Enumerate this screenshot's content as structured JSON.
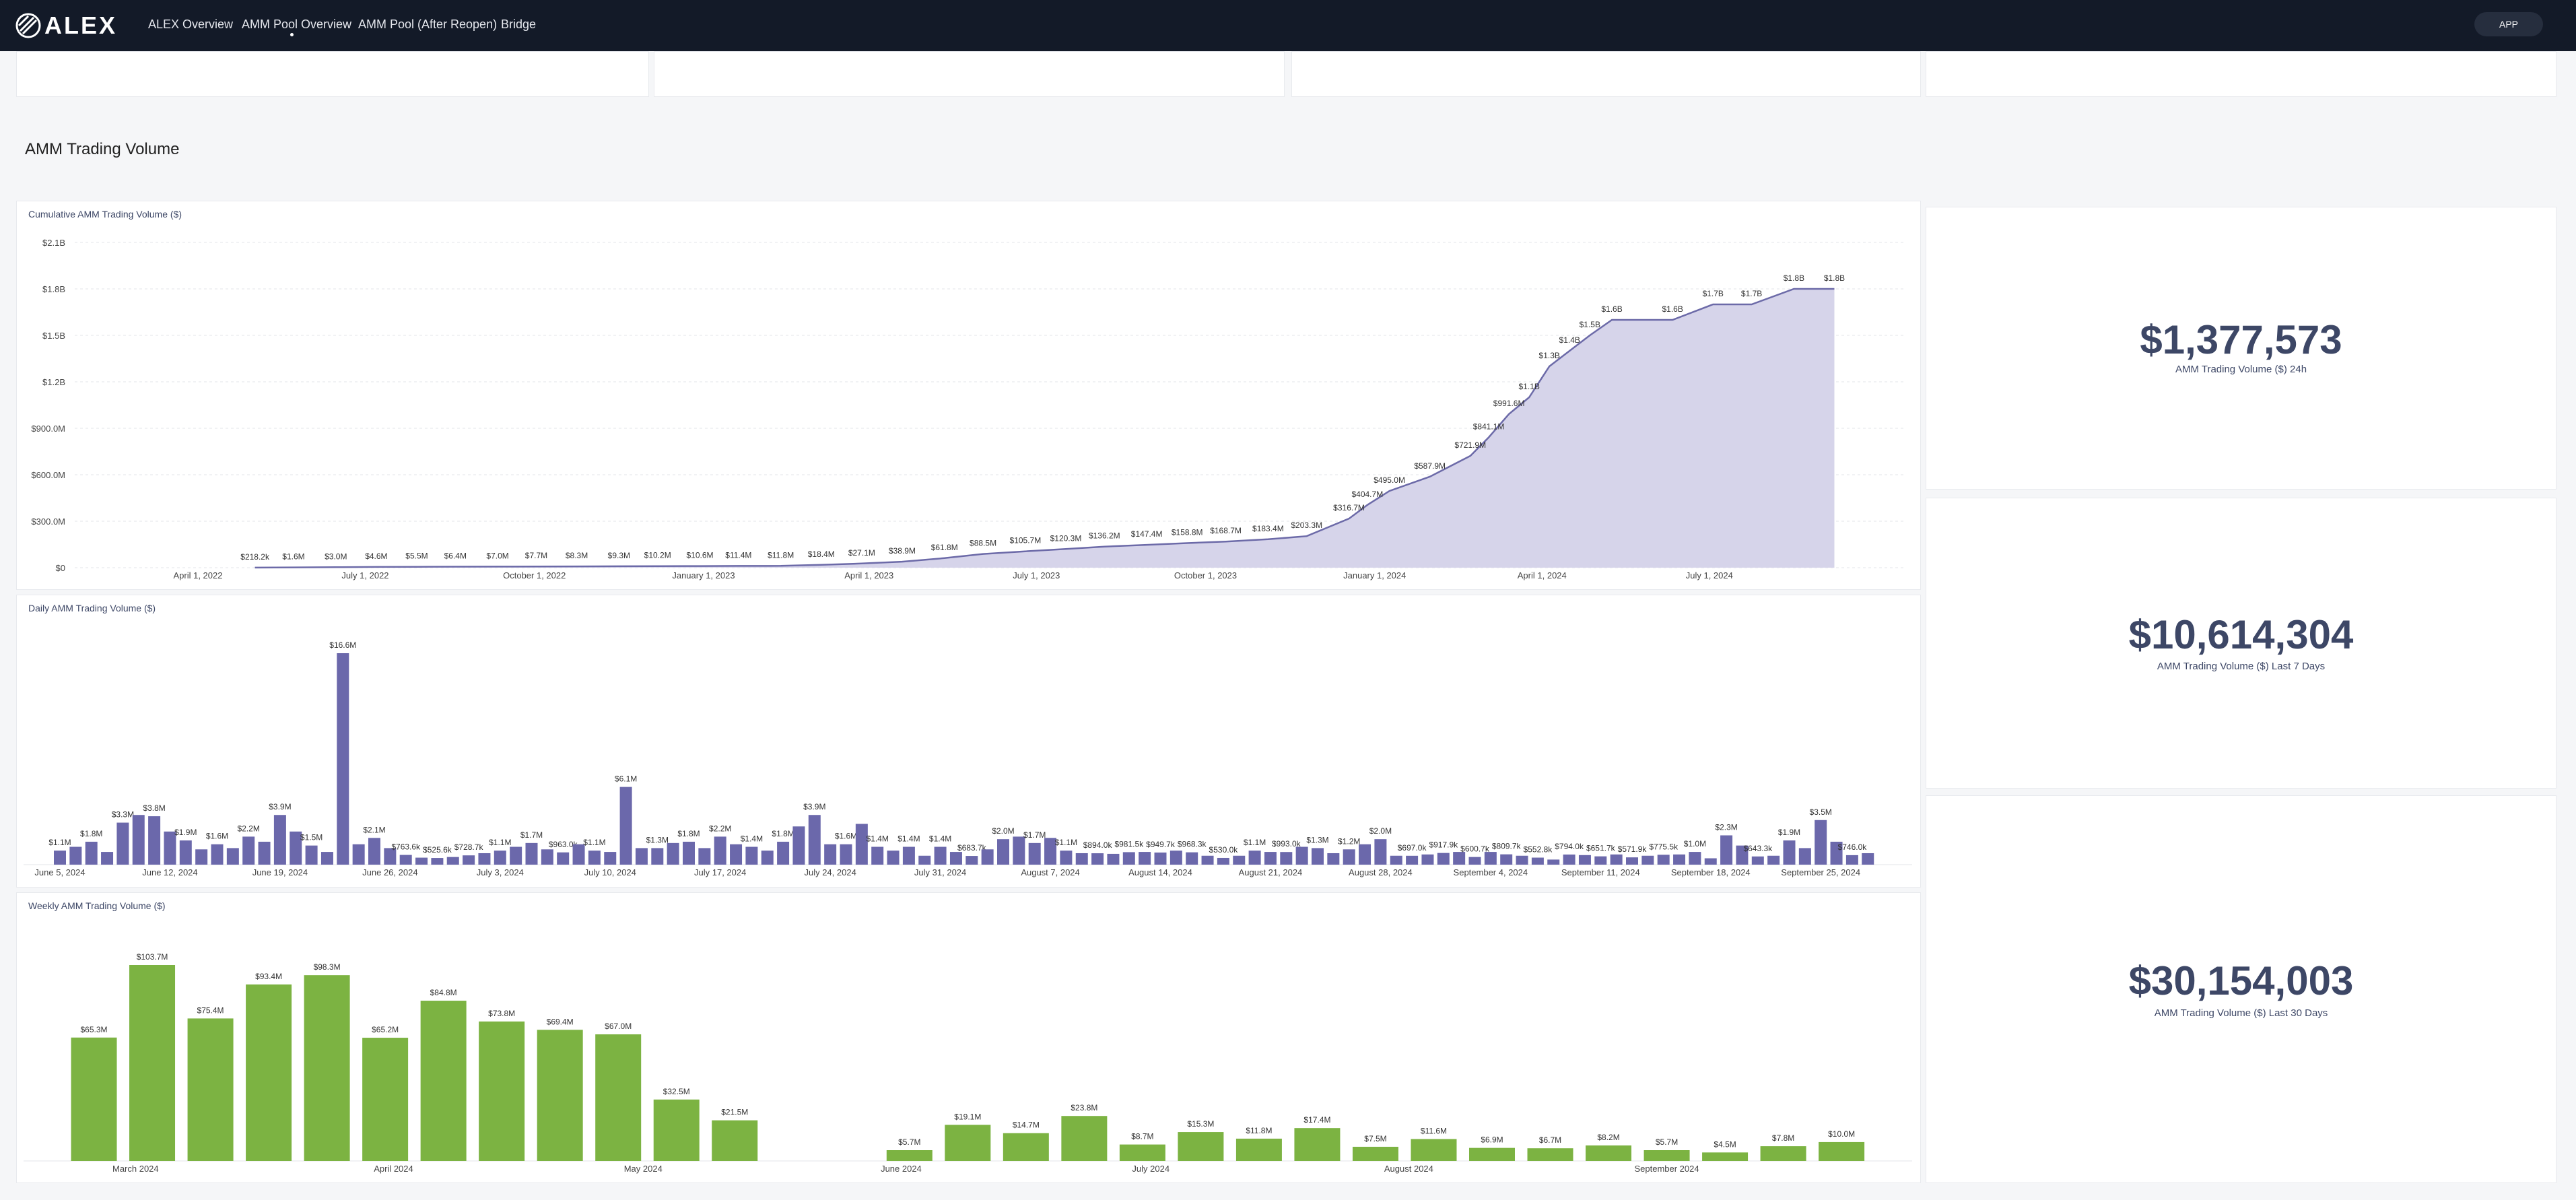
{
  "nav": {
    "logo": "ALEX",
    "links": [
      "ALEX Overview",
      "AMM Pool Overview",
      "AMM Pool (After Reopen)",
      "Bridge"
    ],
    "button": "APP"
  },
  "section_title": "AMM Trading Volume",
  "chart_data": [
    {
      "type": "area",
      "title": "Cumulative AMM Trading Volume ($)",
      "color": "#6c6aa8",
      "fill": "#d6d4ea",
      "grid": true,
      "x": [
        "2022-05-02",
        "2022-05-23",
        "2022-06-15",
        "2022-07-07",
        "2022-07-29",
        "2022-08-19",
        "2022-09-11",
        "2022-10-02",
        "2022-10-24",
        "2022-11-16",
        "2022-12-07",
        "2022-12-30",
        "2023-01-20",
        "2023-02-12",
        "2023-03-06",
        "2023-03-28",
        "2023-04-19",
        "2023-05-12",
        "2023-06-02",
        "2023-06-25",
        "2023-07-17",
        "2023-08-07",
        "2023-08-30",
        "2023-09-21",
        "2023-10-12",
        "2023-11-04",
        "2023-11-25",
        "2023-12-18",
        "2023-12-28",
        "2024-01-09",
        "2024-01-31",
        "2024-02-22",
        "2024-03-03",
        "2024-03-14",
        "2024-03-25",
        "2024-04-05",
        "2024-04-16",
        "2024-04-27",
        "2024-05-09",
        "2024-06-11",
        "2024-07-03",
        "2024-07-24",
        "2024-08-16",
        "2024-09-07"
      ],
      "values": [
        218200,
        1600000,
        3000000,
        4600000,
        5500000,
        6400000,
        7000000,
        7700000,
        8300000,
        9300000,
        10200000,
        10600000,
        11400000,
        11800000,
        18400000,
        27100000,
        38900000,
        61800000,
        88500000,
        105700000,
        120300000,
        136200000,
        147400000,
        158800000,
        168700000,
        183400000,
        203300000,
        316700000,
        404700000,
        495000000,
        587900000,
        721900000,
        841100000,
        991600000,
        1100000000,
        1300000000,
        1400000000,
        1500000000,
        1600000000,
        1600000000,
        1700000000,
        1700000000,
        1800000000,
        1800000000
      ],
      "value_labels": [
        "$218.2k",
        "$1.6M",
        "$3.0M",
        "$4.6M",
        "$5.5M",
        "$6.4M",
        "$7.0M",
        "$7.7M",
        "$8.3M",
        "$9.3M",
        "$10.2M",
        "$10.6M",
        "$11.4M",
        "$11.8M",
        "$18.4M",
        "$27.1M",
        "$38.9M",
        "$61.8M",
        "$88.5M",
        "$105.7M",
        "$120.3M",
        "$136.2M",
        "$147.4M",
        "$158.8M",
        "$168.7M",
        "$183.4M",
        "$203.3M",
        "$316.7M",
        "$404.7M",
        "$495.0M",
        "$587.9M",
        "$721.9M",
        "$841.1M",
        "$991.6M",
        "$1.1B",
        "$1.3B",
        "$1.4B",
        "$1.5B",
        "$1.6B",
        "$1.6B",
        "$1.7B",
        "$1.7B",
        "$1.8B",
        "$1.8B"
      ],
      "xlim": [
        "2022-01-24",
        "2024-10-16"
      ],
      "xticks": [
        {
          "value": "2022-04-01",
          "label": "April 1, 2022"
        },
        {
          "value": "2022-07-01",
          "label": "July 1, 2022"
        },
        {
          "value": "2022-10-01",
          "label": "October 1, 2022"
        },
        {
          "value": "2023-01-01",
          "label": "January 1, 2023"
        },
        {
          "value": "2023-04-01",
          "label": "April 1, 2023"
        },
        {
          "value": "2023-07-01",
          "label": "July 1, 2023"
        },
        {
          "value": "2023-10-01",
          "label": "October 1, 2023"
        },
        {
          "value": "2024-01-01",
          "label": "January 1, 2024"
        },
        {
          "value": "2024-04-01",
          "label": "April 1, 2024"
        },
        {
          "value": "2024-07-01",
          "label": "July 1, 2024"
        }
      ],
      "ylim": [
        0,
        2100000000
      ],
      "yticks": [
        {
          "value": 0,
          "label": "$0"
        },
        {
          "value": 300000000,
          "label": "$300.0M"
        },
        {
          "value": 600000000,
          "label": "$600.0M"
        },
        {
          "value": 900000000,
          "label": "$900.0M"
        },
        {
          "value": 1200000000,
          "label": "$1.2B"
        },
        {
          "value": 1500000000,
          "label": "$1.5B"
        },
        {
          "value": 1800000000,
          "label": "$1.8B"
        },
        {
          "value": 2100000000,
          "label": "$2.1B"
        }
      ]
    },
    {
      "type": "bar",
      "title": "Daily AMM Trading Volume ($)",
      "color": "#6b68ab",
      "categories": [
        "June 5, 2024",
        null,
        null,
        null,
        null,
        null,
        null,
        "June 12, 2024",
        null,
        null,
        null,
        null,
        null,
        null,
        "June 19, 2024",
        null,
        null,
        null,
        null,
        null,
        null,
        "June 26, 2024",
        null,
        null,
        null,
        null,
        null,
        null,
        "July 3, 2024",
        null,
        null,
        null,
        null,
        null,
        null,
        "July 10, 2024",
        null,
        null,
        null,
        null,
        null,
        null,
        "July 17, 2024",
        null,
        null,
        null,
        null,
        null,
        null,
        "July 24, 2024",
        null,
        null,
        null,
        null,
        null,
        null,
        "July 31, 2024",
        null,
        null,
        null,
        null,
        null,
        null,
        "August 7, 2024",
        null,
        null,
        null,
        null,
        null,
        null,
        "August 14, 2024",
        null,
        null,
        null,
        null,
        null,
        null,
        "August 21, 2024",
        null,
        null,
        null,
        null,
        null,
        null,
        "August 28, 2024",
        null,
        null,
        null,
        null,
        null,
        null,
        "September 4, 2024",
        null,
        null,
        null,
        null,
        null,
        null,
        "September 11, 2024",
        null,
        null,
        null,
        null,
        null,
        null,
        "September 18, 2024",
        null,
        null,
        null,
        null,
        null,
        null,
        "September 25, 2024",
        null,
        null,
        null
      ],
      "values": [
        1100000,
        1400000,
        1800000,
        1000000,
        3300000,
        3900000,
        3800000,
        2600000,
        1900000,
        1200000,
        1600000,
        1300000,
        2200000,
        1800000,
        3900000,
        2600000,
        1500000,
        1000000,
        16600000,
        1600000,
        2100000,
        1300000,
        763600,
        550000,
        525600,
        600000,
        728700,
        900000,
        1100000,
        1400000,
        1700000,
        1200000,
        963000,
        1600000,
        1100000,
        1000000,
        6100000,
        1300000,
        1300000,
        1700000,
        1800000,
        1300000,
        2200000,
        1600000,
        1400000,
        1100000,
        1800000,
        3000000,
        3900000,
        1600000,
        1600000,
        3200000,
        1400000,
        1100000,
        1400000,
        700000,
        1400000,
        1000000,
        683700,
        1200000,
        2000000,
        2200000,
        1700000,
        2100000,
        1100000,
        900000,
        894000,
        850000,
        981500,
        1000000,
        949700,
        1100000,
        968300,
        700000,
        530000,
        700000,
        1100000,
        1000000,
        993000,
        1400000,
        1300000,
        900000,
        1200000,
        1600000,
        2000000,
        700000,
        697000,
        800000,
        917900,
        1000000,
        600700,
        1000000,
        809700,
        700000,
        552800,
        400000,
        794000,
        750000,
        651700,
        800000,
        571900,
        700000,
        775500,
        800000,
        1000000,
        500000,
        2300000,
        1500000,
        643300,
        700000,
        1900000,
        1300000,
        3500000,
        1800000,
        746000,
        900000
      ],
      "value_labels": [
        "$1.1M",
        null,
        "$1.8M",
        null,
        "$3.3M",
        null,
        "$3.8M",
        null,
        "$1.9M",
        null,
        "$1.6M",
        null,
        "$2.2M",
        null,
        "$3.9M",
        null,
        "$1.5M",
        null,
        "$16.6M",
        null,
        "$2.1M",
        null,
        "$763.6k",
        null,
        "$525.6k",
        null,
        "$728.7k",
        null,
        "$1.1M",
        null,
        "$1.7M",
        null,
        "$963.0k",
        null,
        "$1.1M",
        null,
        "$6.1M",
        null,
        "$1.3M",
        null,
        "$1.8M",
        null,
        "$2.2M",
        null,
        "$1.4M",
        null,
        "$1.8M",
        null,
        "$3.9M",
        null,
        "$1.6M",
        null,
        "$1.4M",
        null,
        "$1.4M",
        null,
        "$1.4M",
        null,
        "$683.7k",
        null,
        "$2.0M",
        null,
        "$1.7M",
        null,
        "$1.1M",
        null,
        "$894.0k",
        null,
        "$981.5k",
        null,
        "$949.7k",
        null,
        "$968.3k",
        null,
        "$530.0k",
        null,
        "$1.1M",
        null,
        "$993.0k",
        null,
        "$1.3M",
        null,
        "$1.2M",
        null,
        "$2.0M",
        null,
        "$697.0k",
        null,
        "$917.9k",
        null,
        "$600.7k",
        null,
        "$809.7k",
        null,
        "$552.8k",
        null,
        "$794.0k",
        null,
        "$651.7k",
        null,
        "$571.9k",
        null,
        "$775.5k",
        null,
        "$1.0M",
        null,
        "$2.3M",
        null,
        "$643.3k",
        null,
        "$1.9M",
        null,
        "$3.5M",
        null,
        "$746.0k",
        null
      ]
    },
    {
      "type": "bar",
      "title": "Weekly AMM Trading Volume ($)",
      "color": "#7cb342",
      "x": [
        "2024-02-25",
        "2024-03-03",
        "2024-03-10",
        "2024-03-17",
        "2024-03-24",
        "2024-03-31",
        "2024-04-07",
        "2024-04-14",
        "2024-04-21",
        "2024-04-28",
        "2024-05-05",
        "2024-05-12",
        "2024-06-02",
        "2024-06-09",
        "2024-06-16",
        "2024-06-23",
        "2024-06-30",
        "2024-07-07",
        "2024-07-14",
        "2024-07-21",
        "2024-07-28",
        "2024-08-04",
        "2024-08-11",
        "2024-08-18",
        "2024-08-25",
        "2024-09-01",
        "2024-09-08",
        "2024-09-15",
        "2024-09-22"
      ],
      "values": [
        65300000,
        103700000,
        75400000,
        93400000,
        98300000,
        65200000,
        84800000,
        73800000,
        69400000,
        67000000,
        32500000,
        21500000,
        5700000,
        19100000,
        14700000,
        23800000,
        8700000,
        15300000,
        11800000,
        17400000,
        7500000,
        11600000,
        6900000,
        6700000,
        8200000,
        5700000,
        4500000,
        7800000,
        10000000
      ],
      "value_labels": [
        "$65.3M",
        "$103.7M",
        "$75.4M",
        "$93.4M",
        "$98.3M",
        "$65.2M",
        "$84.8M",
        "$73.8M",
        "$69.4M",
        "$67.0M",
        "$32.5M",
        "$21.5M",
        "$5.7M",
        "$19.1M",
        "$14.7M",
        "$23.8M",
        "$8.7M",
        "$15.3M",
        "$11.8M",
        "$17.4M",
        "$7.5M",
        "$11.6M",
        "$6.9M",
        "$6.7M",
        "$8.2M",
        "$5.7M",
        "$4.5M",
        "$7.8M",
        "$10.0M"
      ],
      "xlim": [
        "2024-02-18",
        "2024-09-30"
      ],
      "xticks": [
        {
          "value": "2024-03-01",
          "label": "March 2024"
        },
        {
          "value": "2024-04-01",
          "label": "April 2024"
        },
        {
          "value": "2024-05-01",
          "label": "May 2024"
        },
        {
          "value": "2024-06-01",
          "label": "June 2024"
        },
        {
          "value": "2024-07-01",
          "label": "July 2024"
        },
        {
          "value": "2024-08-01",
          "label": "August 2024"
        },
        {
          "value": "2024-09-01",
          "label": "September 2024"
        }
      ]
    }
  ],
  "kpis": [
    {
      "value": "$1,377,573",
      "label": "AMM Trading Volume ($) 24h"
    },
    {
      "value": "$10,614,304",
      "label": "AMM Trading Volume ($) Last 7 Days"
    },
    {
      "value": "$30,154,003",
      "label": "AMM Trading Volume ($) Last 30 Days"
    }
  ]
}
